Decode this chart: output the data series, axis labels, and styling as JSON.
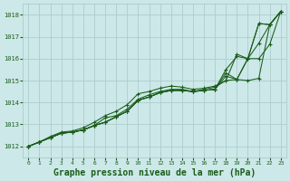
{
  "background_color": "#cce8e8",
  "plot_bg_color": "#cce8e8",
  "line_color": "#1a5c1a",
  "marker_color": "#1a5c1a",
  "grid_color": "#a8c8c8",
  "xlabel": "Graphe pression niveau de la mer (hPa)",
  "xlabel_fontsize": 7.0,
  "ylim": [
    1011.5,
    1018.5
  ],
  "xlim": [
    -0.5,
    23.5
  ],
  "yticks": [
    1012,
    1013,
    1014,
    1015,
    1016,
    1017,
    1018
  ],
  "xticks": [
    0,
    1,
    2,
    3,
    4,
    5,
    6,
    7,
    8,
    9,
    10,
    11,
    12,
    13,
    14,
    15,
    16,
    17,
    18,
    19,
    20,
    21,
    22,
    23
  ],
  "series": [
    [
      1012.0,
      1012.2,
      1012.4,
      1012.6,
      1012.65,
      1012.75,
      1012.95,
      1013.1,
      1013.35,
      1013.6,
      1014.1,
      1014.25,
      1014.45,
      1014.55,
      1014.55,
      1014.5,
      1014.55,
      1014.6,
      1015.5,
      1016.1,
      1016.0,
      1017.6,
      1017.55,
      1018.15
    ],
    [
      1012.0,
      1012.2,
      1012.4,
      1012.6,
      1012.65,
      1012.75,
      1012.95,
      1013.1,
      1013.35,
      1013.6,
      1014.1,
      1014.25,
      1014.45,
      1014.55,
      1014.55,
      1014.5,
      1014.55,
      1014.6,
      1015.2,
      1015.05,
      1015.0,
      1015.1,
      1017.55,
      1018.15
    ],
    [
      1012.0,
      1012.2,
      1012.4,
      1012.6,
      1012.65,
      1012.75,
      1012.95,
      1013.1,
      1013.35,
      1013.6,
      1014.1,
      1014.25,
      1014.45,
      1014.55,
      1014.55,
      1014.5,
      1014.55,
      1014.6,
      1015.35,
      1015.05,
      1016.0,
      1016.0,
      1016.65,
      1018.15
    ],
    [
      1012.0,
      1012.2,
      1012.4,
      1012.6,
      1012.65,
      1012.75,
      1012.95,
      1013.3,
      1013.4,
      1013.7,
      1014.15,
      1014.35,
      1014.5,
      1014.6,
      1014.6,
      1014.5,
      1014.6,
      1014.7,
      1015.0,
      1016.2,
      1016.0,
      1017.6,
      1017.55,
      1018.15
    ],
    [
      1012.0,
      1012.2,
      1012.45,
      1012.65,
      1012.7,
      1012.85,
      1013.1,
      1013.4,
      1013.6,
      1013.9,
      1014.4,
      1014.5,
      1014.65,
      1014.75,
      1014.7,
      1014.6,
      1014.65,
      1014.75,
      1015.0,
      1015.05,
      1016.0,
      1016.7,
      1017.55,
      1018.15
    ]
  ]
}
